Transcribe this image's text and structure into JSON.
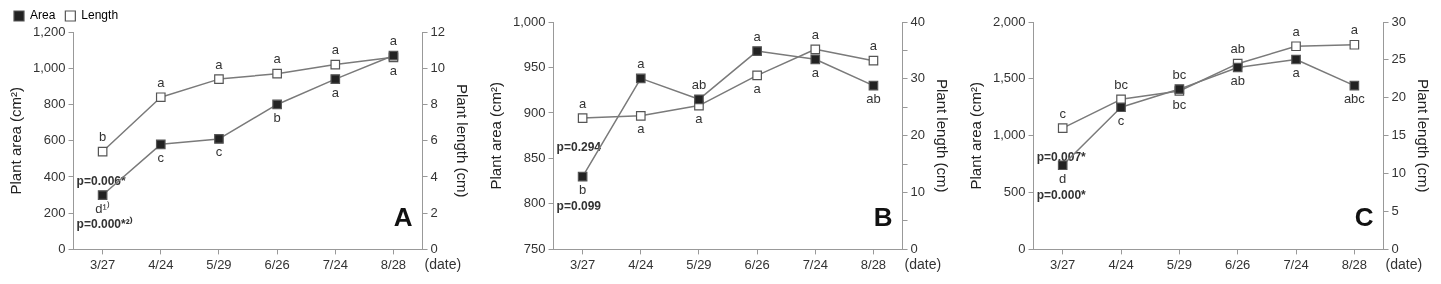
{
  "chart_data": [
    {
      "type": "line",
      "categories": [
        "3/27",
        "4/24",
        "5/29",
        "6/26",
        "7/24",
        "8/28"
      ],
      "xlabel": "(date)",
      "ylabel": "Plant area (cm²)",
      "y2label": "Plant length (cm)",
      "ylim": [
        0,
        1200
      ],
      "yticks": [
        0,
        {
          "value": 200,
          "label": "200"
        },
        {
          "value": 400,
          "label": "400"
        },
        {
          "value": 600,
          "label": "600"
        },
        {
          "value": 800,
          "label": "800"
        },
        {
          "value": 1000,
          "label": "1,000"
        },
        {
          "value": 1200,
          "label": "1,200"
        }
      ],
      "y2lim": [
        0,
        12
      ],
      "y2ticks": [
        0,
        2,
        4,
        6,
        8,
        10,
        12
      ],
      "grid": false,
      "legend": "top left",
      "marker": "square",
      "series": [
        {
          "name": "Area",
          "color": "#222222",
          "values": [
            300,
            580,
            610,
            800,
            940,
            1070
          ],
          "value_labels": [
            "d¹⁾",
            "c",
            "c",
            "b",
            "a",
            "a"
          ]
        },
        {
          "name": "Length",
          "color": "#ffffff",
          "axis": "y2",
          "values": [
            5.4,
            8.4,
            9.4,
            9.7,
            10.2,
            10.6
          ],
          "value_labels": [
            "b",
            "a",
            "a",
            "a",
            "a",
            "a"
          ]
        }
      ],
      "annotations": [
        "A",
        "p=0.000*²⁾",
        "p=0.006*"
      ]
    },
    {
      "type": "line",
      "categories": [
        "3/27",
        "4/24",
        "5/29",
        "6/26",
        "7/24",
        "8/28"
      ],
      "xlabel": "(date)",
      "ylabel": "Plant area (cm²)",
      "y2label": "Plant length (cm)",
      "ylim": [
        750,
        1000
      ],
      "yticks": [
        750,
        800,
        850,
        900,
        950,
        {
          "value": 1000,
          "label": "1,000"
        }
      ],
      "y2lim": [
        0,
        40
      ],
      "y2ticks": [
        0,
        {
          "value": 5,
          "label": null
        },
        10,
        {
          "value": 15,
          "label": null
        },
        20,
        {
          "value": 25,
          "label": null
        },
        30,
        {
          "value": 35,
          "label": null
        },
        40
      ],
      "grid": false,
      "marker": "square",
      "series": [
        {
          "color": "#222222",
          "values": [
            830,
            938,
            915,
            968,
            959,
            930
          ],
          "value_labels": [
            "b",
            "a",
            "ab",
            "a",
            "a",
            "ab"
          ]
        },
        {
          "color": "#ffffff",
          "axis": "y2",
          "values": [
            23.1,
            23.5,
            25.3,
            30.6,
            35.2,
            33.2
          ],
          "value_labels": [
            "a",
            "a",
            "a",
            "a",
            "a",
            "a"
          ]
        }
      ],
      "annotations": [
        "B",
        "p=0.099",
        "p=0.294"
      ]
    },
    {
      "type": "line",
      "categories": [
        "3/27",
        "4/24",
        "5/29",
        "6/26",
        "7/24",
        "8/28"
      ],
      "xlabel": "(date)",
      "ylabel": "Plant area (cm²)",
      "y2label": "Plant length (cm)",
      "ylim": [
        0,
        2000
      ],
      "yticks": [
        0,
        500,
        {
          "value": 1000,
          "label": "1,000"
        },
        {
          "value": 1500,
          "label": "1,500"
        },
        {
          "value": 2000,
          "label": "2,000"
        }
      ],
      "y2lim": [
        0,
        30
      ],
      "y2ticks": [
        0,
        5,
        10,
        15,
        20,
        25,
        30
      ],
      "grid": false,
      "marker": "square",
      "series": [
        {
          "color": "#222222",
          "values": [
            740,
            1250,
            1410,
            1600,
            1670,
            1440
          ],
          "value_labels": [
            "d",
            "c",
            "bc",
            "ab",
            "a",
            "abc"
          ]
        },
        {
          "color": "#ffffff",
          "axis": "y2",
          "values": [
            16.0,
            19.8,
            20.9,
            24.5,
            26.8,
            27.0
          ],
          "value_labels": [
            "c",
            "bc",
            "bc",
            "ab",
            "a",
            "a"
          ]
        }
      ],
      "annotations": [
        "C",
        "p=0.000*",
        "p=0.007*"
      ]
    }
  ]
}
